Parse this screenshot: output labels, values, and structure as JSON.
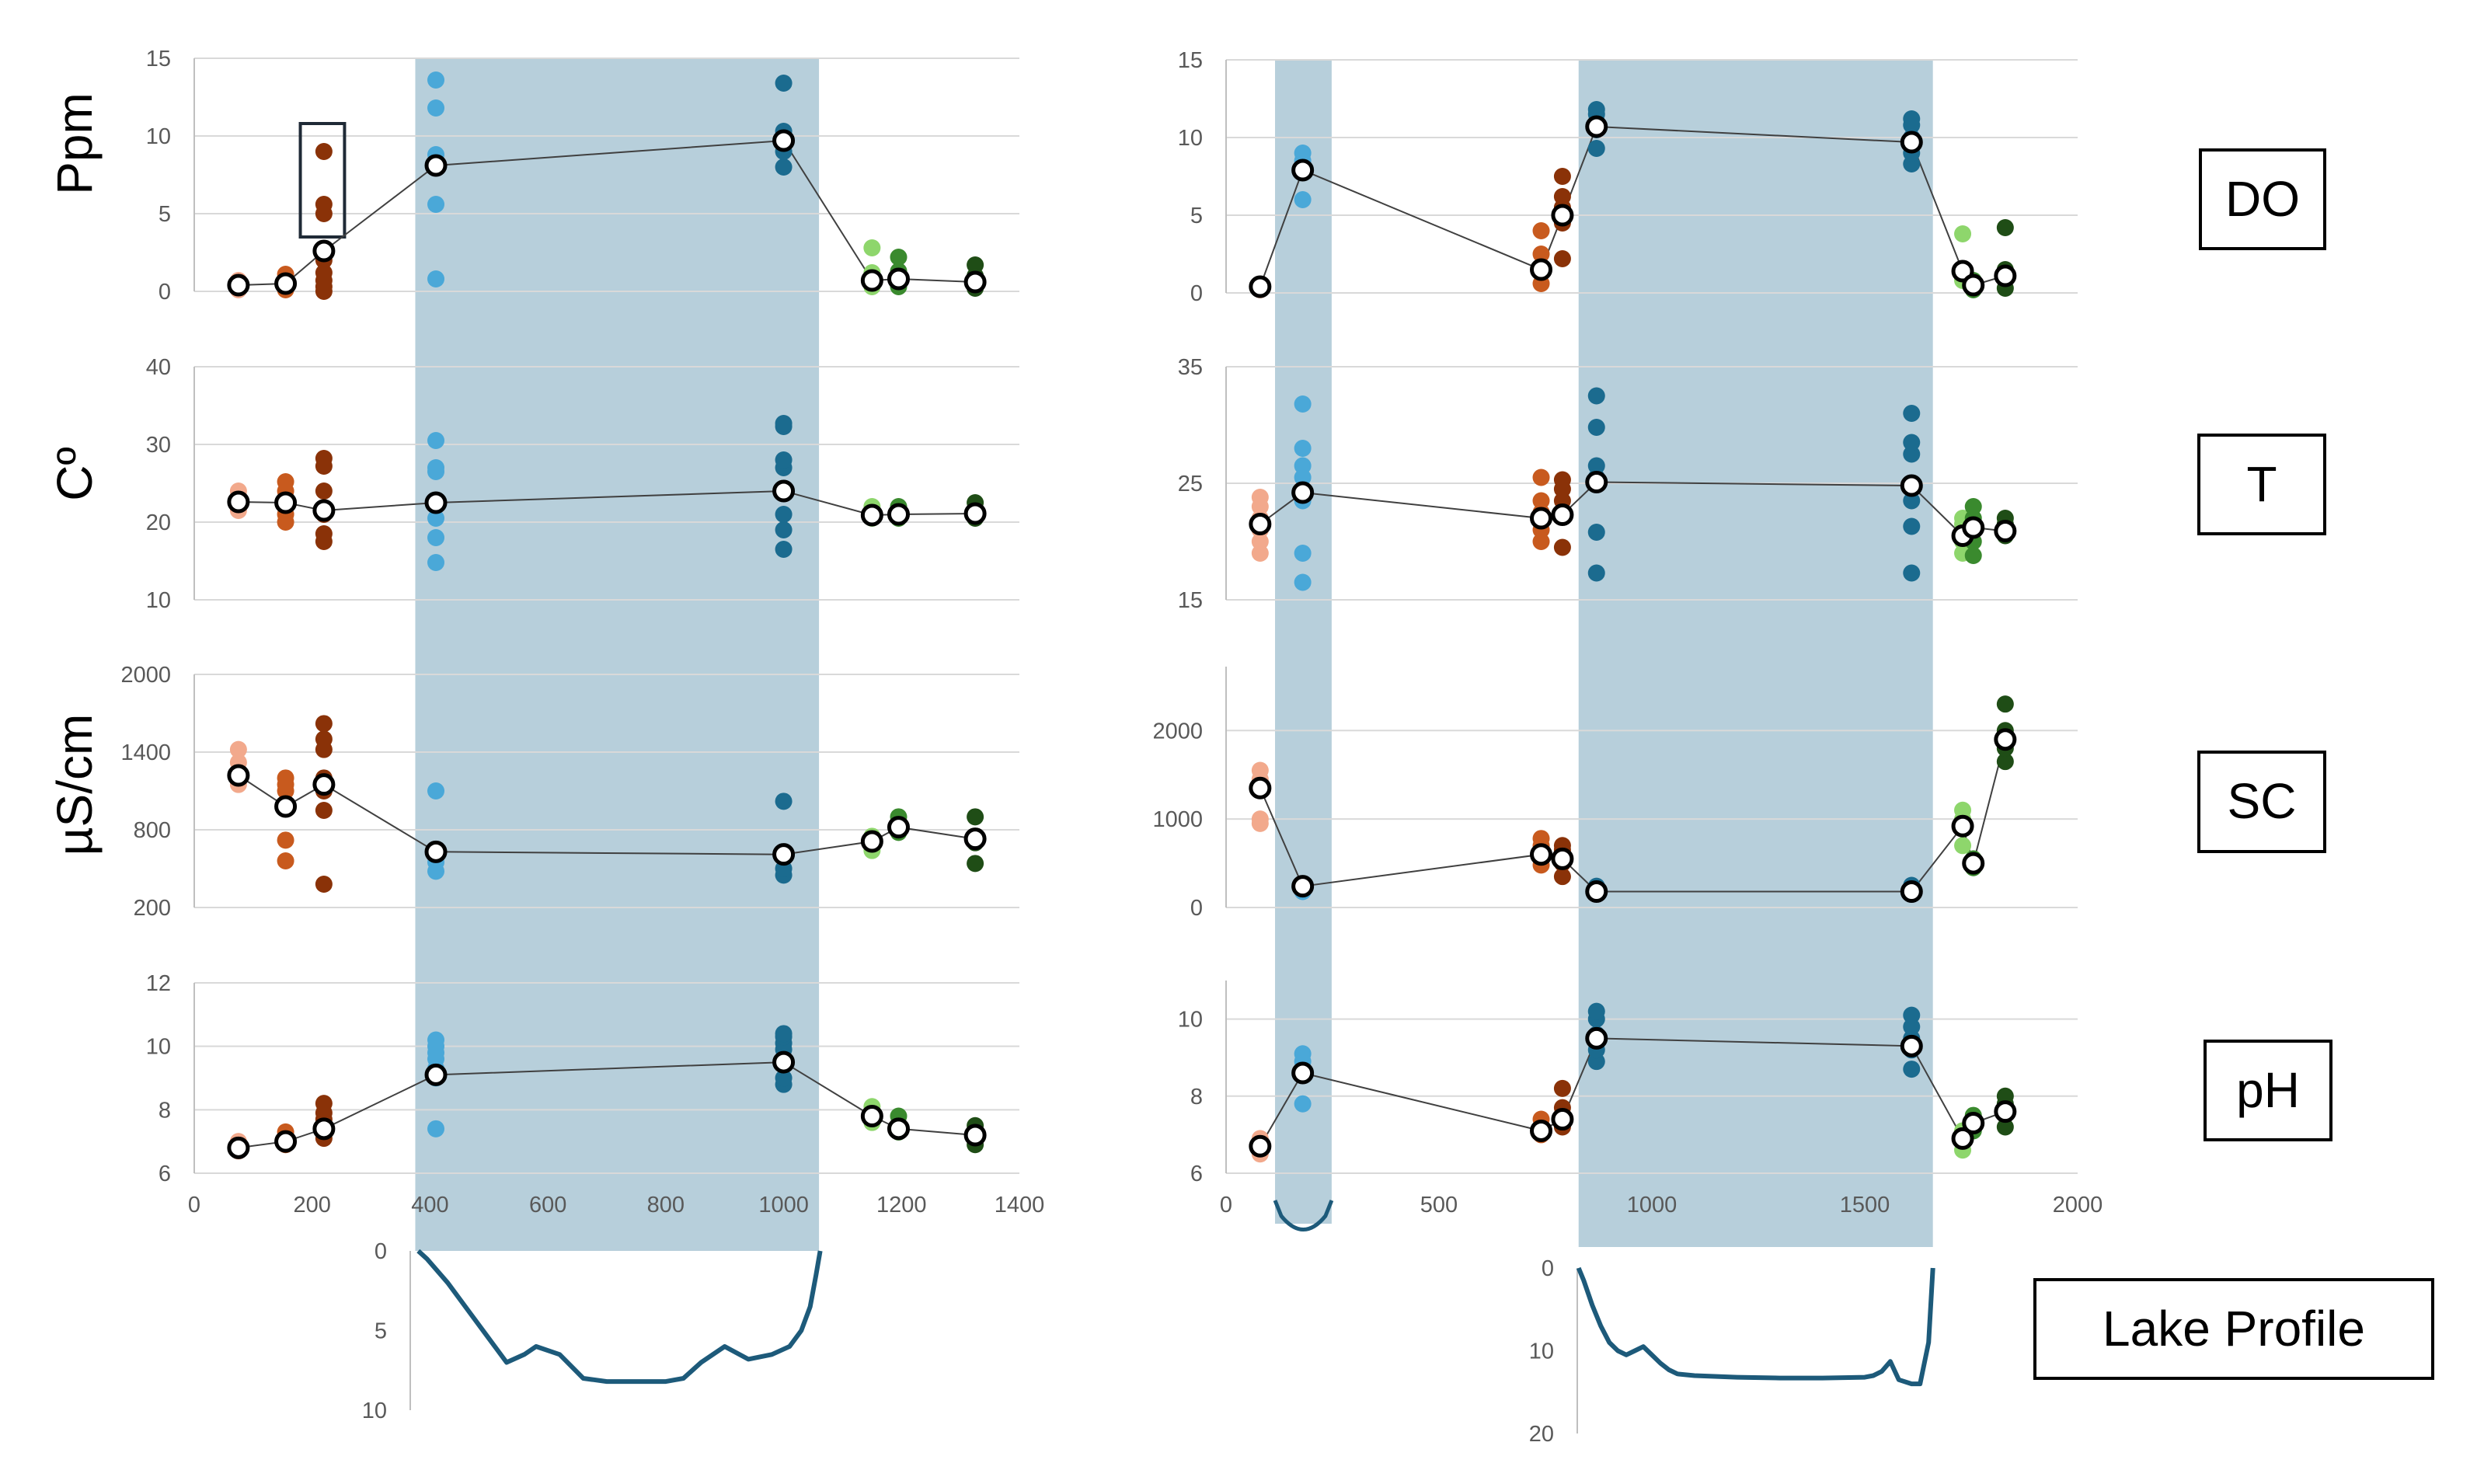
{
  "colors": {
    "shade": "#b7cfdb",
    "grid": "#d9d9d9",
    "axis": "#bfbfbf",
    "mean_line": "#404040",
    "profile_line": "#1d5a7a",
    "site_palette": [
      "#f2a98c",
      "#c85a1e",
      "#8a3208",
      "#4aa8d8",
      "#1b6b8f",
      "#8ed66c",
      "#3a8a2e",
      "#1f4d16"
    ]
  },
  "labels": {
    "ylabel_do": "Ppm",
    "ylabel_t": "Cº",
    "ylabel_sc": "µS/cm",
    "box_do": "DO",
    "box_t": "T",
    "box_sc": "SC",
    "box_ph": "pH",
    "box_profile": "Lake Profile"
  },
  "chart_data": [
    {
      "id": "left-do",
      "type": "scatter",
      "ylabel": "Ppm",
      "xlim": [
        0,
        1400
      ],
      "ylim": [
        0,
        15
      ],
      "yticks": [
        0,
        5,
        10,
        15
      ],
      "xticks": [
        0,
        200,
        400,
        600,
        800,
        1000,
        1200,
        1400
      ],
      "shaded_x": [
        375,
        1060
      ],
      "highlight_box": {
        "x": [
          180,
          255
        ],
        "y": [
          3.5,
          10.8
        ]
      },
      "sites": [
        {
          "x": 75,
          "color": 0,
          "values": [
            0.1,
            0.3,
            0.5,
            0.7
          ],
          "mean": 0.4
        },
        {
          "x": 155,
          "color": 1,
          "values": [
            0.1,
            0.3,
            0.5,
            0.8,
            1.1
          ],
          "mean": 0.5
        },
        {
          "x": 220,
          "color": 2,
          "values": [
            0.0,
            0.3,
            0.7,
            1.2,
            2.0,
            2.7,
            5.0,
            5.6,
            9.0
          ],
          "mean": 2.6
        },
        {
          "x": 410,
          "color": 3,
          "values": [
            0.8,
            5.6,
            8.0,
            8.8,
            11.8,
            13.6
          ],
          "mean": 8.1
        },
        {
          "x": 1000,
          "color": 4,
          "values": [
            8.0,
            9.0,
            9.8,
            10.3,
            13.4
          ],
          "mean": 9.7
        },
        {
          "x": 1150,
          "color": 5,
          "values": [
            0.3,
            0.8,
            1.2,
            2.8
          ],
          "mean": 0.7
        },
        {
          "x": 1195,
          "color": 6,
          "values": [
            0.3,
            0.8,
            1.3,
            2.2
          ],
          "mean": 0.8
        },
        {
          "x": 1325,
          "color": 7,
          "values": [
            0.2,
            0.5,
            1.0,
            1.7
          ],
          "mean": 0.6
        }
      ]
    },
    {
      "id": "left-t",
      "type": "scatter",
      "ylabel": "Cº",
      "xlim": [
        0,
        1400
      ],
      "ylim": [
        10,
        40
      ],
      "yticks": [
        10,
        20,
        30,
        40
      ],
      "xticks": [
        0,
        200,
        400,
        600,
        800,
        1000,
        1200,
        1400
      ],
      "shaded_x": [
        375,
        1060
      ],
      "sites": [
        {
          "x": 75,
          "color": 0,
          "values": [
            21.5,
            22.5,
            23.3,
            24.0
          ],
          "mean": 22.6
        },
        {
          "x": 155,
          "color": 1,
          "values": [
            20.0,
            21.0,
            22.5,
            24.0,
            25.2
          ],
          "mean": 22.5
        },
        {
          "x": 220,
          "color": 2,
          "values": [
            17.5,
            18.5,
            21.0,
            24.0,
            27.2,
            28.2
          ],
          "mean": 21.5
        },
        {
          "x": 410,
          "color": 3,
          "values": [
            14.8,
            18.0,
            20.5,
            22.5,
            26.5,
            27.0,
            30.5
          ],
          "mean": 22.5
        },
        {
          "x": 1000,
          "color": 4,
          "values": [
            16.5,
            19.0,
            21.0,
            24.0,
            27.0,
            28.0,
            32.3,
            32.7
          ],
          "mean": 24.0
        },
        {
          "x": 1150,
          "color": 5,
          "values": [
            20.5,
            21.0,
            22.0
          ],
          "mean": 20.9
        },
        {
          "x": 1195,
          "color": 6,
          "values": [
            20.5,
            21.2,
            22.0
          ],
          "mean": 21.0
        },
        {
          "x": 1325,
          "color": 7,
          "values": [
            20.5,
            21.3,
            22.5
          ],
          "mean": 21.1
        }
      ]
    },
    {
      "id": "left-sc",
      "type": "scatter",
      "ylabel": "µS/cm",
      "xlim": [
        0,
        1400
      ],
      "ylim": [
        200,
        2000
      ],
      "yticks": [
        200,
        800,
        1400,
        2000
      ],
      "xticks": [
        0,
        200,
        400,
        600,
        800,
        1000,
        1200,
        1400
      ],
      "shaded_x": [
        375,
        1060
      ],
      "sites": [
        {
          "x": 75,
          "color": 0,
          "values": [
            1150,
            1250,
            1320,
            1420
          ],
          "mean": 1220
        },
        {
          "x": 155,
          "color": 1,
          "values": [
            560,
            720,
            1000,
            1100,
            1150,
            1200
          ],
          "mean": 980
        },
        {
          "x": 220,
          "color": 2,
          "values": [
            380,
            950,
            1100,
            1200,
            1420,
            1500,
            1620
          ],
          "mean": 1150
        },
        {
          "x": 410,
          "color": 3,
          "values": [
            480,
            550,
            620,
            1100
          ],
          "mean": 630
        },
        {
          "x": 1000,
          "color": 4,
          "values": [
            450,
            500,
            620,
            1020
          ],
          "mean": 610
        },
        {
          "x": 1150,
          "color": 5,
          "values": [
            640,
            700,
            750
          ],
          "mean": 710
        },
        {
          "x": 1195,
          "color": 6,
          "values": [
            780,
            830,
            900
          ],
          "mean": 820
        },
        {
          "x": 1325,
          "color": 7,
          "values": [
            540,
            700,
            750,
            900
          ],
          "mean": 730
        }
      ]
    },
    {
      "id": "left-ph",
      "type": "scatter",
      "ylabel": "",
      "xlim": [
        0,
        1400
      ],
      "ylim": [
        6,
        12
      ],
      "yticks": [
        6,
        8,
        10,
        12
      ],
      "xticks": [
        0,
        200,
        400,
        600,
        800,
        1000,
        1200,
        1400
      ],
      "shaded_x": [
        375,
        1060
      ],
      "sites": [
        {
          "x": 75,
          "color": 0,
          "values": [
            6.7,
            6.9,
            7.0
          ],
          "mean": 6.8
        },
        {
          "x": 155,
          "color": 1,
          "values": [
            6.9,
            7.1,
            7.3
          ],
          "mean": 7.0
        },
        {
          "x": 220,
          "color": 2,
          "values": [
            7.1,
            7.4,
            7.7,
            7.9,
            8.2
          ],
          "mean": 7.4
        },
        {
          "x": 410,
          "color": 3,
          "values": [
            7.4,
            9.0,
            9.3,
            9.6,
            9.8,
            10.0,
            10.2
          ],
          "mean": 9.1
        },
        {
          "x": 1000,
          "color": 4,
          "values": [
            8.8,
            9.0,
            9.6,
            9.9,
            10.1,
            10.3,
            10.4
          ],
          "mean": 9.5
        },
        {
          "x": 1150,
          "color": 5,
          "values": [
            7.6,
            7.8,
            8.1
          ],
          "mean": 7.8
        },
        {
          "x": 1195,
          "color": 6,
          "values": [
            7.3,
            7.5,
            7.8
          ],
          "mean": 7.4
        },
        {
          "x": 1325,
          "color": 7,
          "values": [
            6.9,
            7.1,
            7.3,
            7.5
          ],
          "mean": 7.2
        }
      ]
    },
    {
      "id": "right-do",
      "type": "scatter",
      "xlim": [
        0,
        2000
      ],
      "ylim": [
        0,
        15
      ],
      "yticks": [
        0,
        5,
        10,
        15
      ],
      "xticks": [
        0,
        500,
        1000,
        1500,
        2000
      ],
      "shaded_x": [
        [
          115,
          248
        ],
        [
          828,
          1660
        ]
      ],
      "sites": [
        {
          "x": 80,
          "color": 0,
          "values": [
            0.2,
            0.5
          ],
          "mean": 0.4
        },
        {
          "x": 180,
          "color": 3,
          "values": [
            6.0,
            8.0,
            8.5,
            9.0
          ],
          "mean": 7.9
        },
        {
          "x": 740,
          "color": 1,
          "values": [
            0.6,
            1.5,
            2.5,
            4.0
          ],
          "mean": 1.5
        },
        {
          "x": 790,
          "color": 2,
          "values": [
            2.2,
            4.5,
            5.5,
            6.2,
            7.5
          ],
          "mean": 5.0
        },
        {
          "x": 870,
          "color": 4,
          "values": [
            9.3,
            10.5,
            11.0,
            11.5,
            11.8
          ],
          "mean": 10.7
        },
        {
          "x": 1610,
          "color": 4,
          "values": [
            8.3,
            9.0,
            10.0,
            10.8,
            11.2
          ],
          "mean": 9.7
        },
        {
          "x": 1730,
          "color": 5,
          "values": [
            0.8,
            1.5,
            3.8
          ],
          "mean": 1.4
        },
        {
          "x": 1755,
          "color": 6,
          "values": [
            0.2,
            0.5,
            0.8
          ],
          "mean": 0.5
        },
        {
          "x": 1830,
          "color": 7,
          "values": [
            0.3,
            1.0,
            1.5,
            4.2
          ],
          "mean": 1.1
        }
      ]
    },
    {
      "id": "right-t",
      "type": "scatter",
      "xlim": [
        0,
        2000
      ],
      "ylim": [
        15,
        35
      ],
      "yticks": [
        15,
        25,
        35
      ],
      "xticks": [
        0,
        500,
        1000,
        1500,
        2000
      ],
      "shaded_x": [
        [
          115,
          248
        ],
        [
          828,
          1660
        ]
      ],
      "sites": [
        {
          "x": 80,
          "color": 0,
          "values": [
            19.0,
            20.0,
            21.0,
            22.0,
            23.0,
            23.8
          ],
          "mean": 21.5
        },
        {
          "x": 180,
          "color": 3,
          "values": [
            16.5,
            19.0,
            23.5,
            25.5,
            26.5,
            28.0,
            31.8
          ],
          "mean": 24.2
        },
        {
          "x": 740,
          "color": 1,
          "values": [
            20.0,
            21.0,
            22.5,
            23.5,
            25.5
          ],
          "mean": 22.0
        },
        {
          "x": 790,
          "color": 2,
          "values": [
            19.5,
            22.5,
            23.5,
            24.5,
            25.3
          ],
          "mean": 22.3
        },
        {
          "x": 870,
          "color": 4,
          "values": [
            17.3,
            20.8,
            25.5,
            26.5,
            29.8,
            32.5
          ],
          "mean": 25.1
        },
        {
          "x": 1610,
          "color": 4,
          "values": [
            17.3,
            21.3,
            23.5,
            27.5,
            28.5,
            31.0
          ],
          "mean": 24.8
        },
        {
          "x": 1730,
          "color": 5,
          "values": [
            19.0,
            20.0,
            21.5,
            22.0
          ],
          "mean": 20.5
        },
        {
          "x": 1755,
          "color": 6,
          "values": [
            18.8,
            20.0,
            21.0,
            22.0,
            23.0
          ],
          "mean": 21.2
        },
        {
          "x": 1830,
          "color": 7,
          "values": [
            20.5,
            21.0,
            21.5,
            22.0
          ],
          "mean": 20.9
        }
      ]
    },
    {
      "id": "right-sc",
      "type": "scatter",
      "xlim": [
        0,
        2000
      ],
      "ylim": [
        0,
        2600
      ],
      "yticks": [
        0,
        1000,
        2000
      ],
      "xticks": [
        0,
        500,
        1000,
        1500,
        2000
      ],
      "shaded_x": [
        [
          115,
          248
        ],
        [
          828,
          1660
        ]
      ],
      "sites": [
        {
          "x": 80,
          "color": 0,
          "values": [
            950,
            1000,
            1350,
            1450,
            1550
          ],
          "mean": 1350
        },
        {
          "x": 180,
          "color": 3,
          "values": [
            180,
            220,
            250
          ],
          "mean": 240
        },
        {
          "x": 740,
          "color": 1,
          "values": [
            480,
            550,
            620,
            700,
            780
          ],
          "mean": 600
        },
        {
          "x": 790,
          "color": 2,
          "values": [
            350,
            500,
            580,
            650,
            700
          ],
          "mean": 550
        },
        {
          "x": 870,
          "color": 4,
          "values": [
            160,
            200,
            240
          ],
          "mean": 180
        },
        {
          "x": 1610,
          "color": 4,
          "values": [
            150,
            200,
            250
          ],
          "mean": 180
        },
        {
          "x": 1730,
          "color": 5,
          "values": [
            700,
            900,
            1000,
            1100
          ],
          "mean": 920
        },
        {
          "x": 1755,
          "color": 6,
          "values": [
            450,
            500,
            550
          ],
          "mean": 500
        },
        {
          "x": 1830,
          "color": 7,
          "values": [
            1650,
            1800,
            2000,
            2300
          ],
          "mean": 1900
        }
      ]
    },
    {
      "id": "right-ph",
      "type": "scatter",
      "xlim": [
        0,
        2000
      ],
      "ylim": [
        6,
        11
      ],
      "yticks": [
        6,
        8,
        10
      ],
      "xticks": [
        0,
        500,
        1000,
        1500,
        2000
      ],
      "shaded_x": [
        [
          115,
          248
        ],
        [
          828,
          1660
        ]
      ],
      "sites": [
        {
          "x": 80,
          "color": 0,
          "values": [
            6.5,
            6.7,
            6.9
          ],
          "mean": 6.7
        },
        {
          "x": 180,
          "color": 3,
          "values": [
            7.8,
            8.6,
            8.9,
            9.1
          ],
          "mean": 8.6
        },
        {
          "x": 740,
          "color": 1,
          "values": [
            7.0,
            7.2,
            7.4
          ],
          "mean": 7.1
        },
        {
          "x": 790,
          "color": 2,
          "values": [
            7.2,
            7.5,
            7.7,
            8.2
          ],
          "mean": 7.4
        },
        {
          "x": 870,
          "color": 4,
          "values": [
            8.9,
            9.2,
            9.6,
            10.0,
            10.2
          ],
          "mean": 9.5
        },
        {
          "x": 1610,
          "color": 4,
          "values": [
            8.7,
            9.2,
            9.5,
            9.8,
            10.1
          ],
          "mean": 9.3
        },
        {
          "x": 1730,
          "color": 5,
          "values": [
            6.6,
            6.9,
            7.1
          ],
          "mean": 6.9
        },
        {
          "x": 1755,
          "color": 6,
          "values": [
            7.1,
            7.3,
            7.5
          ],
          "mean": 7.3
        },
        {
          "x": 1830,
          "color": 7,
          "values": [
            7.2,
            7.5,
            7.8,
            8.0
          ],
          "mean": 7.6
        }
      ]
    },
    {
      "id": "left-profile",
      "type": "line",
      "ylim": [
        0,
        10
      ],
      "yticks": [
        0,
        5,
        10
      ],
      "y_inverted": true,
      "x": [
        380,
        395,
        430,
        470,
        500,
        530,
        560,
        580,
        620,
        660,
        700,
        740,
        770,
        800,
        830,
        860,
        900,
        940,
        980,
        1010,
        1030,
        1045,
        1055,
        1062
      ],
      "depth": [
        0,
        0.5,
        2.0,
        4.0,
        5.5,
        7.0,
        6.5,
        6.0,
        6.5,
        8.0,
        8.2,
        8.2,
        8.2,
        8.2,
        8.0,
        7.0,
        6.0,
        6.8,
        6.5,
        6.0,
        5.0,
        3.5,
        1.5,
        0
      ]
    },
    {
      "id": "right-profile",
      "type": "line",
      "ylim": [
        0,
        20
      ],
      "yticks": [
        0,
        10,
        20
      ],
      "y_inverted": true,
      "x": [
        828,
        840,
        860,
        880,
        900,
        920,
        940,
        960,
        980,
        1000,
        1020,
        1040,
        1060,
        1100,
        1200,
        1300,
        1400,
        1500,
        1520,
        1540,
        1560,
        1580,
        1610,
        1630,
        1650,
        1660
      ],
      "depth": [
        0,
        1.5,
        4.5,
        7.0,
        9.0,
        10.0,
        10.5,
        10.0,
        9.5,
        10.5,
        11.5,
        12.3,
        12.8,
        13.0,
        13.2,
        13.3,
        13.3,
        13.2,
        13.0,
        12.5,
        11.3,
        13.5,
        14.0,
        14.0,
        9.0,
        0
      ]
    }
  ]
}
